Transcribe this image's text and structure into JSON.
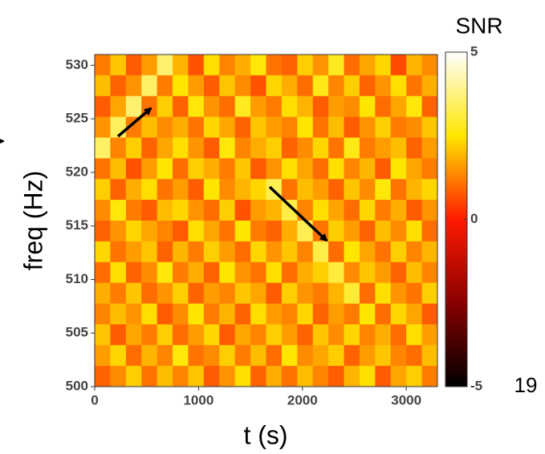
{
  "chart_data": {
    "type": "heatmap",
    "x_label": "t (s)",
    "y_label": "freq (Hz)",
    "colorbar_title": "SNR",
    "xlim": [
      0,
      3300
    ],
    "ylim": [
      500,
      531
    ],
    "xticks": [
      0,
      1000,
      2000,
      3000
    ],
    "yticks": [
      500,
      505,
      510,
      515,
      520,
      525,
      530
    ],
    "zlim": [
      -5,
      5
    ],
    "zticks": [
      -5,
      0,
      5
    ],
    "colormap": [
      "#000000",
      "#8a0000",
      "#ff1a00",
      "#ffe600",
      "#ffffff"
    ],
    "z": [
      [
        1.2,
        2.1,
        0.8,
        1.6,
        3.6,
        1.9,
        0.7,
        2.4,
        1.3,
        1.8,
        2.6,
        1.1,
        0.9,
        2.2,
        1.5,
        2.8,
        1.0,
        1.7,
        2.3,
        0.6,
        1.9,
        1.4
      ],
      [
        2.0,
        0.9,
        1.5,
        3.5,
        1.2,
        2.5,
        1.6,
        0.8,
        2.1,
        1.4,
        0.7,
        2.3,
        1.8,
        1.0,
        2.7,
        1.3,
        2.2,
        0.9,
        1.5,
        2.4,
        1.1,
        1.8
      ],
      [
        0.8,
        1.7,
        3.6,
        1.1,
        2.2,
        0.9,
        2.6,
        1.5,
        1.0,
        2.8,
        1.6,
        1.2,
        2.4,
        1.9,
        0.8,
        1.6,
        1.4,
        2.5,
        1.0,
        1.7,
        2.6,
        0.9
      ],
      [
        1.5,
        3.4,
        1.2,
        2.0,
        1.4,
        1.8,
        1.1,
        2.3,
        1.7,
        0.9,
        2.1,
        1.6,
        1.3,
        2.5,
        1.1,
        2.0,
        0.8,
        1.5,
        2.2,
        1.2,
        1.4,
        2.1
      ],
      [
        3.5,
        1.3,
        2.2,
        0.9,
        1.7,
        2.4,
        1.5,
        0.8,
        2.6,
        1.3,
        1.8,
        2.2,
        0.9,
        1.4,
        2.3,
        1.1,
        2.7,
        1.2,
        1.6,
        2.0,
        0.9,
        1.6
      ],
      [
        1.1,
        2.0,
        0.7,
        1.6,
        2.5,
        1.0,
        2.2,
        1.8,
        1.2,
        2.1,
        0.8,
        1.5,
        2.4,
        1.7,
        1.0,
        2.4,
        1.3,
        1.9,
        0.8,
        2.5,
        1.7,
        1.2
      ],
      [
        2.2,
        0.9,
        1.8,
        2.4,
        1.1,
        1.6,
        0.8,
        2.5,
        1.4,
        1.9,
        2.3,
        3.3,
        1.1,
        2.0,
        1.6,
        0.9,
        2.1,
        1.4,
        2.6,
        1.1,
        1.9,
        2.3
      ],
      [
        1.4,
        2.6,
        1.2,
        0.8,
        2.0,
        2.3,
        1.5,
        1.0,
        2.2,
        0.7,
        1.6,
        1.9,
        3.2,
        1.3,
        2.4,
        1.7,
        1.0,
        2.3,
        1.2,
        1.8,
        0.8,
        1.5
      ],
      [
        0.9,
        1.5,
        2.3,
        1.7,
        1.3,
        0.8,
        2.4,
        1.7,
        1.1,
        2.5,
        1.2,
        0.9,
        1.8,
        3.3,
        1.1,
        2.2,
        1.6,
        0.9,
        2.0,
        1.4,
        2.4,
        1.0
      ],
      [
        2.3,
        1.1,
        1.6,
        2.1,
        0.9,
        1.9,
        1.2,
        2.2,
        1.6,
        1.0,
        2.3,
        1.5,
        2.1,
        1.3,
        3.2,
        1.0,
        2.5,
        1.7,
        1.1,
        2.2,
        1.3,
        1.9
      ],
      [
        1.0,
        2.4,
        0.9,
        1.4,
        2.6,
        1.2,
        1.8,
        0.9,
        2.5,
        1.5,
        1.1,
        2.4,
        1.0,
        1.8,
        2.2,
        3.1,
        1.4,
        2.1,
        1.6,
        0.9,
        2.0,
        1.3
      ],
      [
        1.8,
        1.2,
        2.1,
        1.0,
        1.5,
        2.2,
        0.9,
        1.6,
        1.3,
        2.1,
        1.7,
        0.8,
        2.2,
        1.5,
        1.2,
        1.9,
        3.0,
        1.0,
        2.4,
        1.5,
        1.1,
        2.2
      ],
      [
        1.3,
        2.0,
        1.5,
        2.4,
        0.8,
        1.4,
        2.5,
        1.2,
        1.9,
        0.9,
        2.4,
        1.6,
        1.3,
        2.3,
        0.9,
        1.6,
        1.2,
        2.5,
        1.0,
        2.3,
        1.7,
        0.8
      ],
      [
        2.1,
        0.8,
        1.7,
        1.2,
        2.2,
        1.0,
        1.6,
        2.3,
        0.8,
        1.7,
        1.3,
        2.2,
        1.6,
        0.9,
        2.1,
        1.4,
        2.3,
        1.3,
        1.8,
        1.0,
        2.4,
        1.6
      ],
      [
        1.6,
        2.3,
        1.0,
        1.9,
        1.3,
        2.6,
        1.1,
        1.4,
        2.2,
        1.2,
        2.0,
        1.0,
        2.5,
        1.4,
        1.7,
        2.2,
        0.9,
        1.6,
        2.1,
        1.3,
        1.0,
        2.0
      ],
      [
        0.9,
        1.4,
        2.2,
        1.1,
        2.0,
        1.3,
        2.1,
        0.8,
        1.5,
        2.4,
        0.9,
        1.8,
        1.1,
        2.0,
        1.3,
        0.8,
        1.9,
        2.4,
        0.8,
        1.7,
        2.2,
        1.2
      ]
    ]
  },
  "slide_number": "19"
}
